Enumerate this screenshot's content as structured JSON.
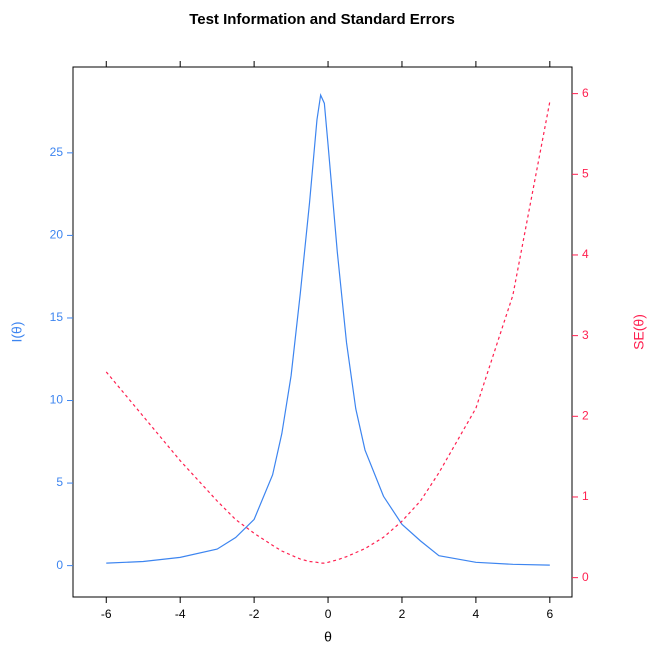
{
  "chart_data": {
    "type": "line",
    "title": "Test Information and Standard Errors",
    "x_label": "θ",
    "y_label": "I(θ)",
    "y2_label": "SE(θ)",
    "x": [
      -6,
      -5,
      -4,
      -3,
      -2.5,
      -2,
      -1.5,
      -1.25,
      -1,
      -0.75,
      -0.5,
      -0.3,
      -0.2,
      -0.1,
      0,
      0.25,
      0.5,
      0.75,
      1,
      1.5,
      2,
      2.5,
      3,
      4,
      5,
      6
    ],
    "series": [
      {
        "name": "I(θ)",
        "color": "#3d85f0",
        "dash": false,
        "values": [
          0.15,
          0.25,
          0.5,
          1.0,
          1.7,
          2.8,
          5.5,
          8,
          11.5,
          16.5,
          22,
          27,
          28.5,
          28,
          25.5,
          19,
          13.5,
          9.5,
          7,
          4.2,
          2.5,
          1.5,
          0.6,
          0.2,
          0.08,
          0.03
        ]
      },
      {
        "name": "SE(θ)",
        "color": "#ff2050",
        "dash": true,
        "axis": "y2",
        "values": [
          2.55,
          2.0,
          1.45,
          0.95,
          0.72,
          0.55,
          0.4,
          0.33,
          0.28,
          0.23,
          0.2,
          0.19,
          0.18,
          0.18,
          0.19,
          0.22,
          0.26,
          0.31,
          0.36,
          0.5,
          0.7,
          0.95,
          1.3,
          2.1,
          3.5,
          5.9
        ]
      }
    ],
    "xlim": [
      -6.9,
      6.6
    ],
    "xticks": [
      -6,
      -4,
      -2,
      0,
      2,
      4,
      6
    ],
    "ylim": [
      -1.9,
      30.2
    ],
    "yticks": [
      0,
      5,
      10,
      15,
      20,
      25
    ],
    "y2lim": [
      -0.24,
      6.33
    ],
    "y2ticks": [
      0,
      1,
      2,
      3,
      4,
      5,
      6
    ]
  }
}
